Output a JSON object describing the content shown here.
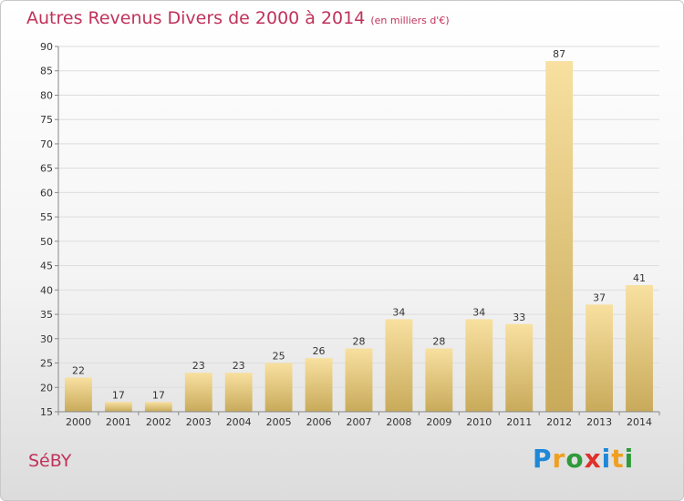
{
  "header": {
    "title": "Autres Revenus Divers de 2000 à 2014",
    "subtitle": "(en milliers d'€)"
  },
  "footer": {
    "town": "SéBY",
    "logo_text": "Proxiti",
    "logo_colors": [
      "#1e88d8",
      "#f0a020",
      "#2f9a3a",
      "#e0302a",
      "#1e88d8",
      "#f0a020",
      "#2f9a3a"
    ]
  },
  "chart_data": {
    "type": "bar",
    "title": "Autres Revenus Divers de 2000 à 2014",
    "subtitle": "(en milliers d'€)",
    "xlabel": "",
    "ylabel": "",
    "categories": [
      "2000",
      "2001",
      "2002",
      "2003",
      "2004",
      "2005",
      "2006",
      "2007",
      "2008",
      "2009",
      "2010",
      "2011",
      "2012",
      "2013",
      "2014"
    ],
    "values": [
      22,
      17,
      17,
      23,
      23,
      25,
      26,
      28,
      34,
      28,
      34,
      33,
      87,
      37,
      41
    ],
    "ylim": [
      15,
      90
    ],
    "yticks": [
      15,
      20,
      25,
      30,
      35,
      40,
      45,
      50,
      55,
      60,
      65,
      70,
      75,
      80,
      85,
      90
    ],
    "grid": true,
    "bar_color_light": "#f8e0a0",
    "bar_color_dark": "#c8aa5a",
    "grid_color": "#dddddd",
    "axis_color": "#888888"
  }
}
